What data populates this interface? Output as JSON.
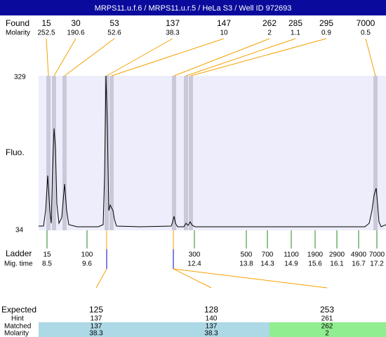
{
  "title": "MRPS11.u.f.6 / MRPS11.u.r.5 / HeLa S3 / Well ID 972693",
  "found": {
    "label": "Found",
    "molarity_label": "Molarity",
    "sizes": [
      15,
      30,
      53,
      137,
      147,
      262,
      285,
      295,
      7000
    ],
    "molarity": [
      252.5,
      190.6,
      52.6,
      38.3,
      10,
      2,
      1.1,
      0.9,
      0.5
    ]
  },
  "y_axis": {
    "label": "Fluo.",
    "max": 329,
    "min": 34
  },
  "ladder": {
    "label": "Ladder",
    "time_label": "Mig. time",
    "sizes": [
      15,
      100,
      300,
      500,
      700,
      1100,
      1900,
      2900,
      4900,
      7000
    ],
    "times": [
      8.5,
      9.6,
      12.4,
      13.8,
      14.3,
      14.9,
      15.6,
      16.1,
      16.7,
      17.2
    ]
  },
  "expected": {
    "label": "Expected",
    "hint_label": "Hint",
    "matched_label": "Matched",
    "molarity_label": "Molarity",
    "values": [
      125,
      128,
      253
    ],
    "hint": [
      137,
      140,
      261
    ],
    "matched": [
      137,
      137,
      262
    ],
    "molarity": [
      38.3,
      38.3,
      2
    ]
  }
}
